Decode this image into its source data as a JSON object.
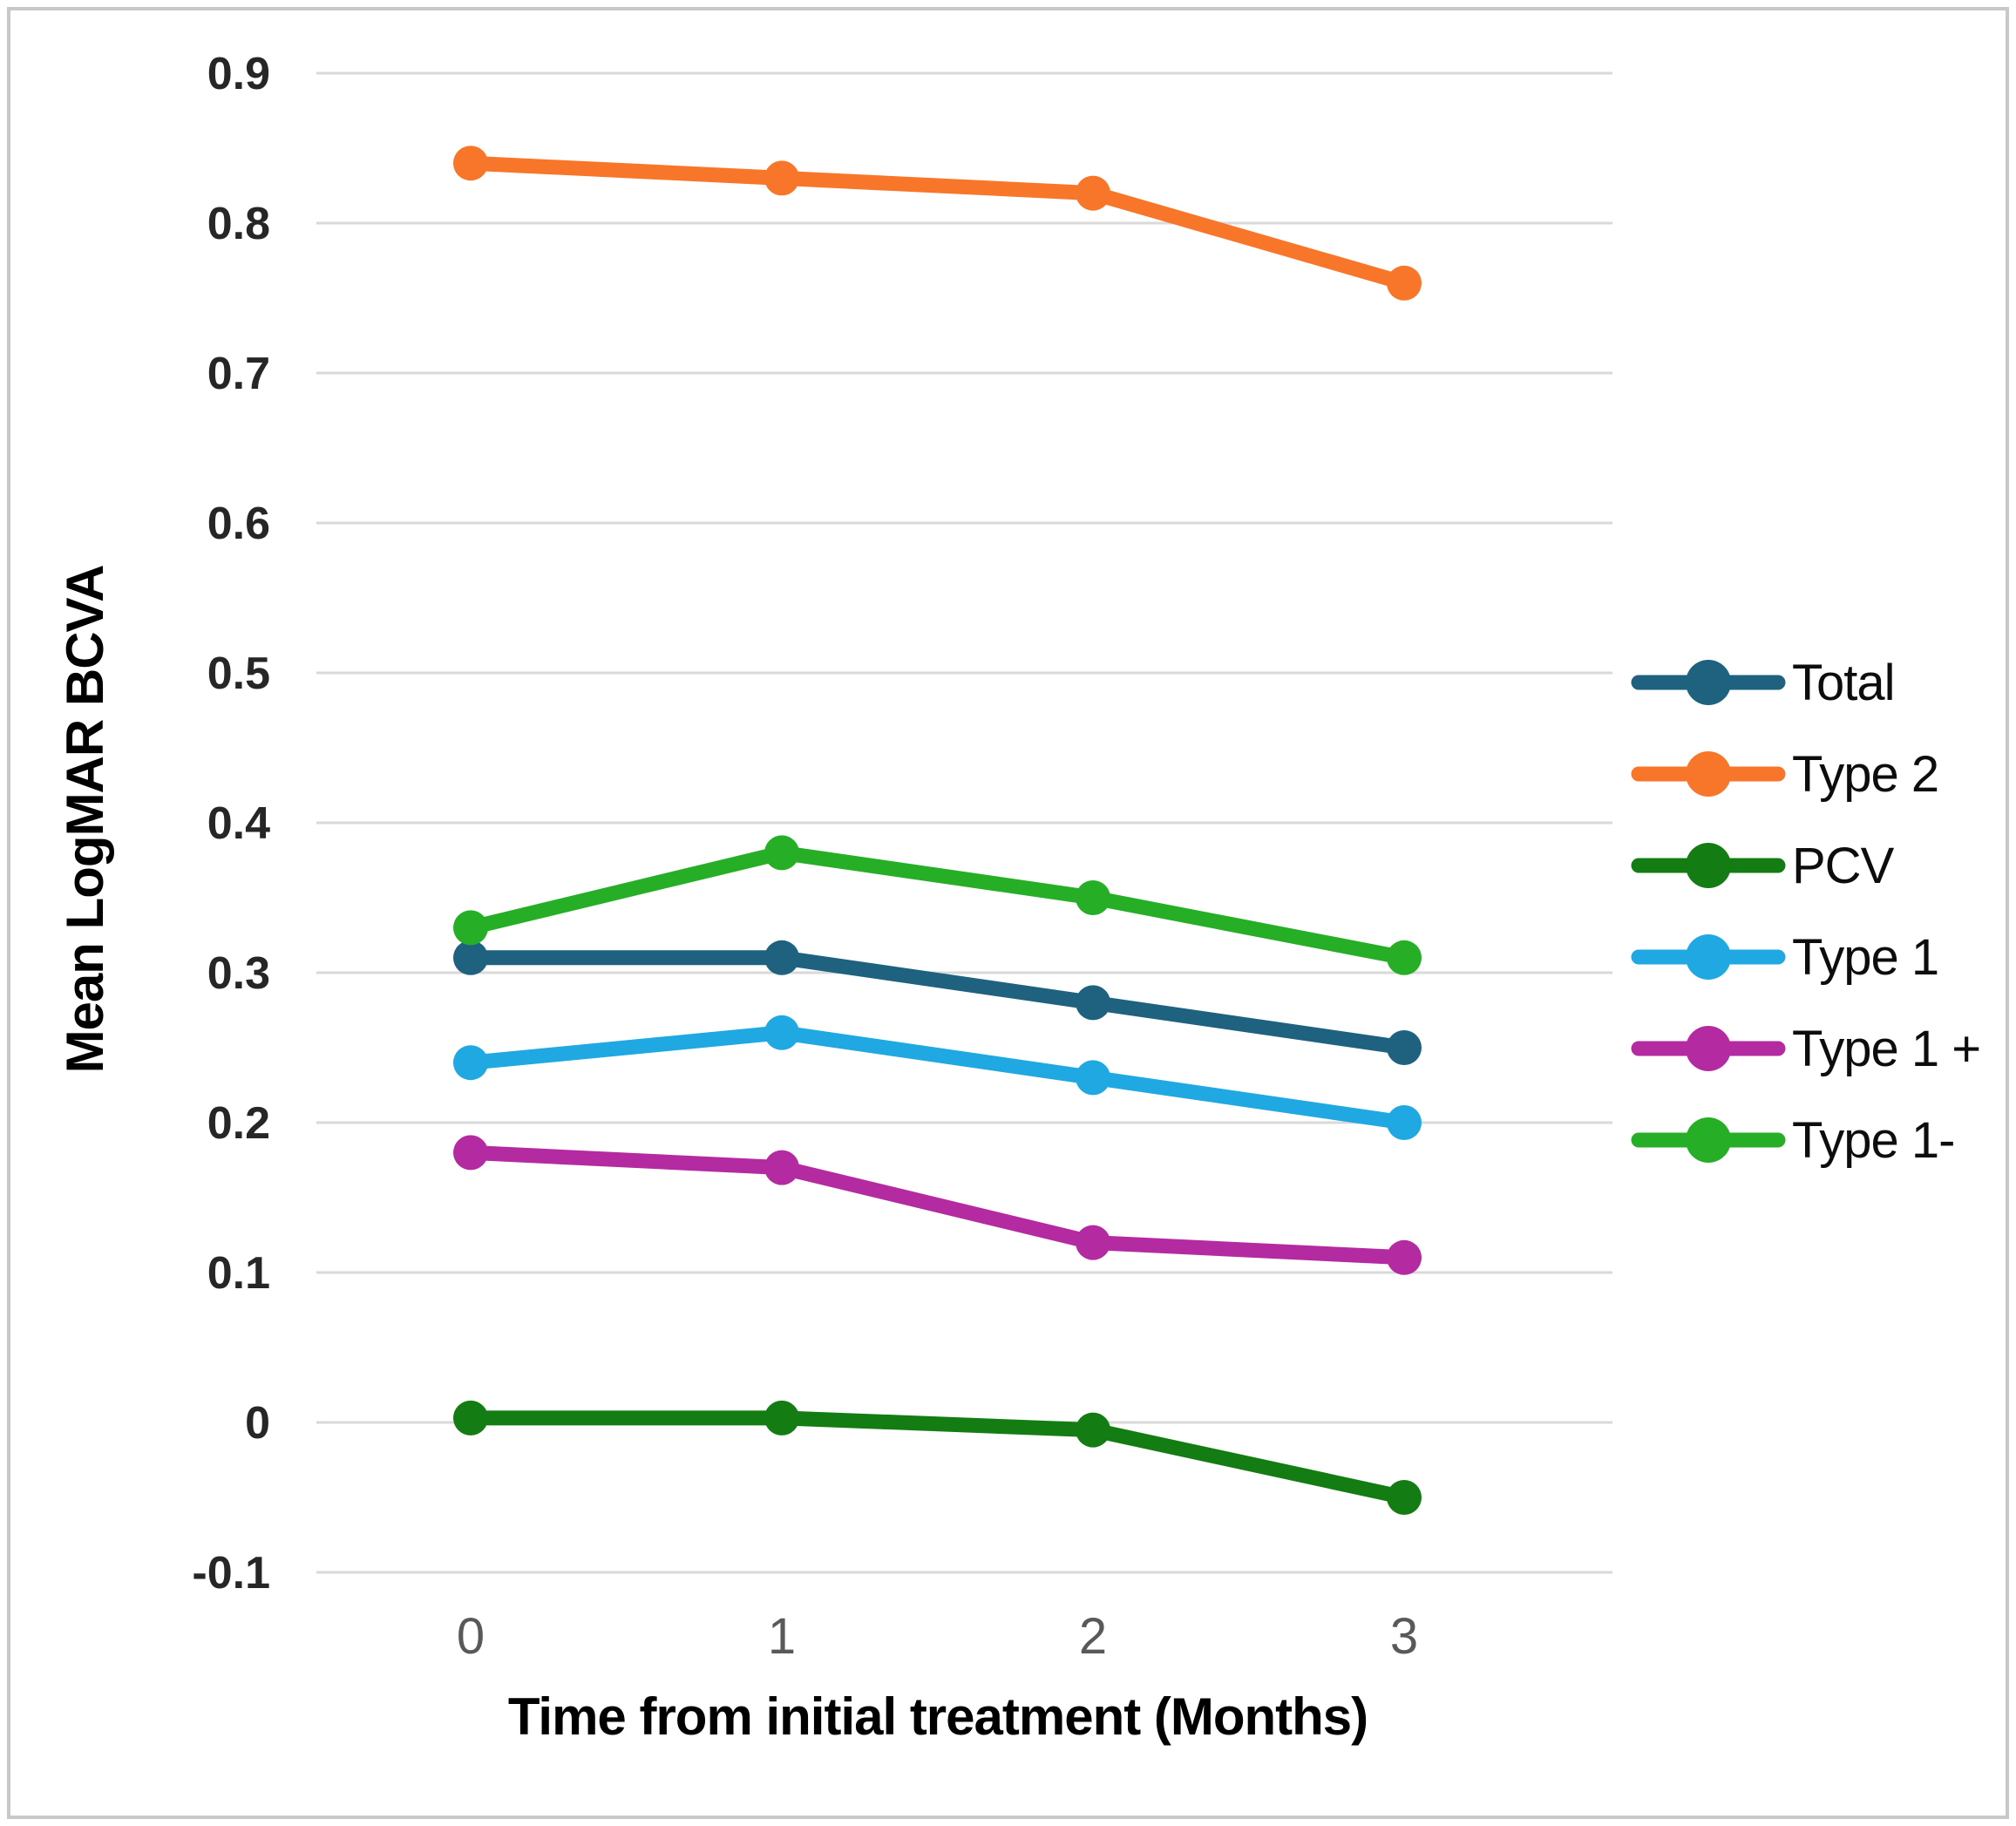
{
  "figure": {
    "background_color": "#FFFFFF",
    "border_color": "#C8C8C8"
  },
  "chart_data": {
    "type": "line",
    "title": "",
    "xlabel": "Time from initial treatment (Months)",
    "ylabel": "Mean LogMAR BCVA",
    "x": [
      0,
      1,
      2,
      3
    ],
    "x_tick_labels": [
      "0",
      "1",
      "2",
      "3"
    ],
    "y_tick_values": [
      0.9,
      0.8,
      0.7,
      0.6,
      0.5,
      0.4,
      0.3,
      0.2,
      0.1,
      0,
      -0.1
    ],
    "y_tick_labels": [
      "0.9",
      "0.8",
      "0.7",
      "0.6",
      "0.5",
      "0.4",
      "0.3",
      "0.2",
      "0.1",
      "0",
      "-0.1"
    ],
    "ylim": [
      -0.1,
      0.9
    ],
    "grid": true,
    "gridline_color": "#D9D9D9",
    "legend_position": "right",
    "marker": "circle",
    "series": [
      {
        "name": "Total",
        "color": "#1E627F",
        "values": [
          0.31,
          0.31,
          0.28,
          0.25
        ]
      },
      {
        "name": "Type 2",
        "color": "#F87629",
        "values": [
          0.84,
          0.83,
          0.82,
          0.76
        ]
      },
      {
        "name": "PCV",
        "color": "#137C13",
        "values": [
          0.003,
          0.003,
          -0.005,
          -0.05
        ]
      },
      {
        "name": "Type 1",
        "color": "#1FA8E1",
        "values": [
          0.24,
          0.26,
          0.23,
          0.2
        ]
      },
      {
        "name": "Type 1 +",
        "color": "#B42BA1",
        "values": [
          0.18,
          0.17,
          0.12,
          0.11
        ]
      },
      {
        "name": "Type 1-",
        "color": "#27AE27",
        "values": [
          0.33,
          0.38,
          0.35,
          0.31
        ]
      }
    ]
  }
}
